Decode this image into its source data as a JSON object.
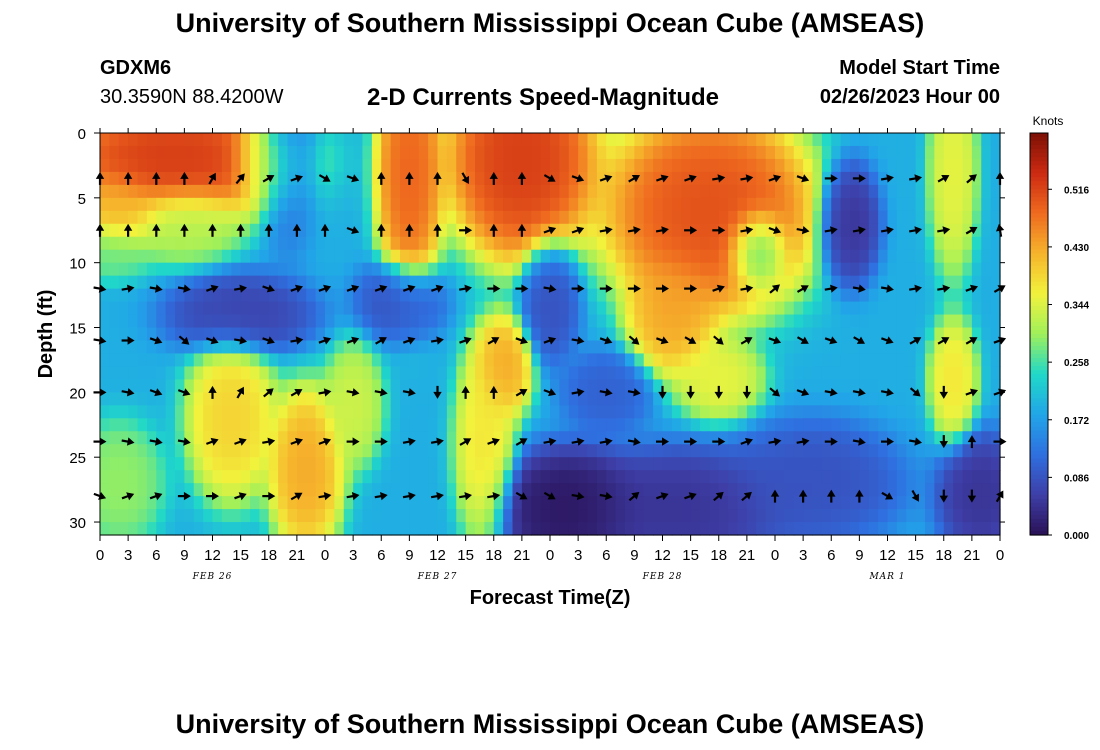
{
  "header": {
    "title": "University of Southern Mississippi Ocean Cube (AMSEAS)",
    "station_id": "GDXM6",
    "coordinates": "30.3590N  88.4200W",
    "chart_title": "2-D Currents Speed-Magnitude",
    "model_start_label": "Model Start Time",
    "model_start_value": "02/26/2023 Hour 00"
  },
  "footer": {
    "title": "University of Southern Mississippi Ocean Cube (AMSEAS)"
  },
  "chart_data": {
    "type": "heatmap",
    "title": "2-D Currents Speed-Magnitude",
    "xlabel": "Forecast Time(Z)",
    "ylabel": "Depth (ft)",
    "x_tick_labels": [
      "0",
      "3",
      "6",
      "9",
      "12",
      "15",
      "18",
      "21",
      "0",
      "3",
      "6",
      "9",
      "12",
      "15",
      "18",
      "21",
      "0",
      "3",
      "6",
      "9",
      "12",
      "15",
      "18",
      "21",
      "0",
      "3",
      "6",
      "9",
      "12",
      "15",
      "18",
      "21",
      "0"
    ],
    "date_labels": [
      {
        "text": "FEB 26",
        "hour": 12
      },
      {
        "text": "FEB 27",
        "hour": 36
      },
      {
        "text": "FEB 28",
        "hour": 60
      },
      {
        "text": "MAR 1",
        "hour": 84
      }
    ],
    "xlim_hours": [
      0,
      96
    ],
    "ylim_depth_ft": [
      0,
      31
    ],
    "y_ticks": [
      0,
      5,
      10,
      15,
      20,
      25,
      30
    ],
    "y_inverted": true,
    "colorbar": {
      "unit": "Knots",
      "ticks": [
        0.0,
        0.086,
        0.172,
        0.258,
        0.344,
        0.43,
        0.516
      ],
      "tick_labels": [
        "0.000",
        "0.086",
        "0.172",
        "0.258",
        "0.344",
        "0.430",
        "0.516"
      ],
      "range": [
        0,
        0.6
      ],
      "colormap": [
        "#2a1156",
        "#3e3fa8",
        "#2f6fe0",
        "#21a6e8",
        "#20d8c8",
        "#9ff05a",
        "#f2f23c",
        "#f6b42c",
        "#ef6a1f",
        "#cc2a12",
        "#7c1005"
      ]
    },
    "hotspots": [
      {
        "t": 8,
        "d": 2,
        "s": 0.54,
        "rt": 8,
        "rd": 3
      },
      {
        "t": 2,
        "d": 6,
        "s": 0.42,
        "rt": 3,
        "rd": 2
      },
      {
        "t": 1,
        "d": 9,
        "s": 0.28,
        "rt": 3,
        "rd": 1.5
      },
      {
        "t": 9,
        "d": 7,
        "s": 0.32,
        "rt": 4,
        "rd": 2
      },
      {
        "t": 18,
        "d": 2,
        "s": 0.3,
        "rt": 2.5,
        "rd": 2.5
      },
      {
        "t": 20,
        "d": 1,
        "s": 0.12,
        "rt": 2,
        "rd": 5
      },
      {
        "t": 33,
        "d": 3,
        "s": 0.5,
        "rt": 2.2,
        "rd": 6
      },
      {
        "t": 45,
        "d": 2,
        "s": 0.54,
        "rt": 5,
        "rd": 5
      },
      {
        "t": 65,
        "d": 6,
        "s": 0.52,
        "rt": 7,
        "rd": 5
      },
      {
        "t": 61,
        "d": 14,
        "s": 0.44,
        "rt": 3,
        "rd": 3
      },
      {
        "t": 66,
        "d": 19,
        "s": 0.36,
        "rt": 3,
        "rd": 2
      },
      {
        "t": 91,
        "d": 3,
        "s": 0.36,
        "rt": 1.6,
        "rd": 5
      },
      {
        "t": 91,
        "d": 19,
        "s": 0.38,
        "rt": 1.6,
        "rd": 3
      },
      {
        "t": 80,
        "d": 7,
        "s": 0.04,
        "rt": 2,
        "rd": 3
      },
      {
        "t": 43,
        "d": 18,
        "s": 0.44,
        "rt": 2,
        "rd": 2.5
      },
      {
        "t": 41,
        "d": 24,
        "s": 0.38,
        "rt": 2,
        "rd": 5
      },
      {
        "t": 14,
        "d": 22,
        "s": 0.4,
        "rt": 3,
        "rd": 4
      },
      {
        "t": 22,
        "d": 26,
        "s": 0.44,
        "rt": 2.5,
        "rd": 4
      },
      {
        "t": 27,
        "d": 21,
        "s": 0.34,
        "rt": 2,
        "rd": 3
      },
      {
        "t": 2,
        "d": 27,
        "s": 0.3,
        "rt": 3,
        "rd": 3
      },
      {
        "t": 15,
        "d": 14,
        "s": 0.06,
        "rt": 5,
        "rd": 2
      },
      {
        "t": 32,
        "d": 13,
        "s": 0.08,
        "rt": 3,
        "rd": 2
      },
      {
        "t": 48,
        "d": 13,
        "s": 0.08,
        "rt": 2,
        "rd": 3
      },
      {
        "t": 50,
        "d": 29,
        "s": 0.0,
        "rt": 5,
        "rd": 3
      },
      {
        "t": 62,
        "d": 29,
        "s": 0.04,
        "rt": 7,
        "rd": 3
      },
      {
        "t": 94,
        "d": 28,
        "s": 0.04,
        "rt": 3,
        "rd": 3
      },
      {
        "t": 76,
        "d": 27,
        "s": 0.08,
        "rt": 6,
        "rd": 3
      },
      {
        "t": 54,
        "d": 20,
        "s": 0.1,
        "rt": 3,
        "rd": 2
      },
      {
        "t": 70,
        "d": 9,
        "s": 0.22,
        "rt": 2,
        "rd": 2
      }
    ],
    "base_speed": 0.19,
    "arrow_depths_ft": [
      3.5,
      7.5,
      12,
      16,
      20,
      23.8,
      28
    ],
    "arrow_interval_hours": 3,
    "arrow_directions_deg": [
      [
        -90,
        -90,
        -90,
        -90,
        -60,
        -50,
        -30,
        -20,
        30,
        20,
        -90,
        -90,
        -90,
        60,
        -90,
        -90,
        30,
        20,
        -20,
        -30,
        -20,
        -20,
        -10,
        -10,
        -20,
        20,
        0,
        0,
        -10,
        -10,
        -30,
        -40,
        -90
      ],
      [
        -90,
        -90,
        -90,
        -90,
        -90,
        -90,
        -90,
        -90,
        -90,
        20,
        -90,
        -90,
        -90,
        0,
        -90,
        -90,
        -20,
        -20,
        -10,
        -10,
        -10,
        0,
        0,
        -10,
        20,
        10,
        -10,
        -10,
        -10,
        -10,
        -10,
        -30,
        -100
      ],
      [
        10,
        -10,
        10,
        10,
        -20,
        -10,
        20,
        -20,
        -20,
        -20,
        -20,
        -20,
        -20,
        -10,
        0,
        0,
        10,
        0,
        0,
        0,
        0,
        0,
        -20,
        -10,
        -40,
        -30,
        -10,
        10,
        10,
        -10,
        -10,
        -20,
        -30
      ],
      [
        10,
        0,
        20,
        40,
        20,
        10,
        20,
        -10,
        -20,
        -20,
        -30,
        -20,
        -10,
        -20,
        -30,
        20,
        -20,
        10,
        20,
        40,
        20,
        30,
        40,
        -30,
        20,
        30,
        20,
        30,
        20,
        -30,
        -30,
        -30,
        -20
      ],
      [
        0,
        10,
        20,
        20,
        -90,
        -60,
        -40,
        -30,
        -10,
        10,
        10,
        10,
        90,
        -90,
        -90,
        -30,
        20,
        -10,
        10,
        10,
        90,
        90,
        90,
        90,
        40,
        20,
        10,
        10,
        10,
        40,
        90,
        -20,
        -20
      ],
      [
        0,
        10,
        10,
        10,
        -20,
        -20,
        -10,
        -20,
        -20,
        0,
        0,
        -10,
        -10,
        -30,
        -20,
        -30,
        -10,
        -10,
        -10,
        10,
        0,
        0,
        0,
        -20,
        -10,
        -10,
        0,
        10,
        0,
        10,
        90,
        -90,
        0
      ],
      [
        20,
        -20,
        -20,
        0,
        0,
        -20,
        0,
        -30,
        -10,
        -10,
        -10,
        -10,
        -10,
        -10,
        -10,
        30,
        30,
        10,
        10,
        -40,
        -20,
        -20,
        -40,
        -40,
        -90,
        -90,
        -90,
        -90,
        30,
        60,
        90,
        90,
        -60
      ]
    ]
  }
}
